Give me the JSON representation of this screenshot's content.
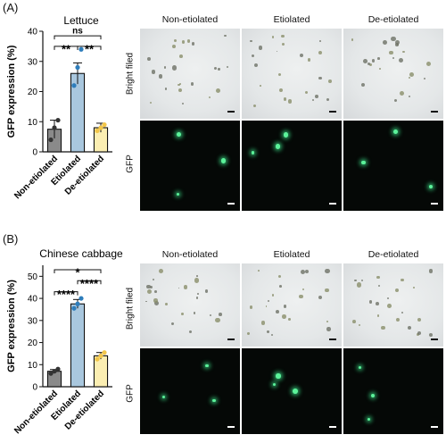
{
  "panels": [
    {
      "label": "(A)",
      "chart_data": {
        "type": "bar",
        "title": "Lettuce",
        "ylabel": "GFP expression (%)",
        "ylim": [
          0,
          40
        ],
        "yticks": [
          0,
          10,
          20,
          30,
          40
        ],
        "categories": [
          "Non-etiolated",
          "Etiolated",
          "De-etiolated"
        ],
        "values": [
          7.5,
          26.0,
          8.0
        ],
        "errors": [
          3.0,
          3.5,
          1.5
        ],
        "points": [
          [
            4,
            8,
            10.5
          ],
          [
            22,
            28,
            34
          ],
          [
            7,
            8,
            9
          ]
        ],
        "colors": [
          "#8a8a8a",
          "#a9c7de",
          "#fbeeb2"
        ],
        "point_colors": [
          "#333333",
          "#2e7dbb",
          "#f2c64a"
        ],
        "significance": [
          {
            "from": 0,
            "to": 1,
            "label": "**",
            "y": 35
          },
          {
            "from": 1,
            "to": 2,
            "label": "**",
            "y": 35
          },
          {
            "from": 0,
            "to": 2,
            "label": "ns",
            "y": 38.5
          }
        ]
      },
      "images": {
        "columns": [
          "Non-etiolated",
          "Etiolated",
          "De-etiolated"
        ],
        "rows": [
          "Bright filed",
          "GFP"
        ]
      }
    },
    {
      "label": "(B)",
      "chart_data": {
        "type": "bar",
        "title": "Chinese cabbage",
        "ylabel": "GFP expression (%)",
        "ylim": [
          0,
          55
        ],
        "yticks": [
          0,
          10,
          20,
          30,
          40,
          50
        ],
        "categories": [
          "Non-etiolated",
          "Etiolated",
          "De-etiolated"
        ],
        "values": [
          7.0,
          37.5,
          14.0
        ],
        "errors": [
          0.8,
          2.0,
          1.5
        ],
        "points": [
          [
            6,
            7,
            8
          ],
          [
            35.5,
            37.5,
            40
          ],
          [
            12.5,
            14,
            15.5
          ]
        ],
        "colors": [
          "#8a8a8a",
          "#a9c7de",
          "#fbeeb2"
        ],
        "point_colors": [
          "#333333",
          "#2e7dbb",
          "#f2c64a"
        ],
        "significance": [
          {
            "from": 0,
            "to": 1,
            "label": "****",
            "y": 43
          },
          {
            "from": 1,
            "to": 2,
            "label": "****",
            "y": 48
          },
          {
            "from": 0,
            "to": 2,
            "label": "*",
            "y": 53
          }
        ]
      },
      "images": {
        "columns": [
          "Non-etiolated",
          "Etiolated",
          "De-etiolated"
        ],
        "rows": [
          "Bright filed",
          "GFP"
        ]
      }
    }
  ]
}
